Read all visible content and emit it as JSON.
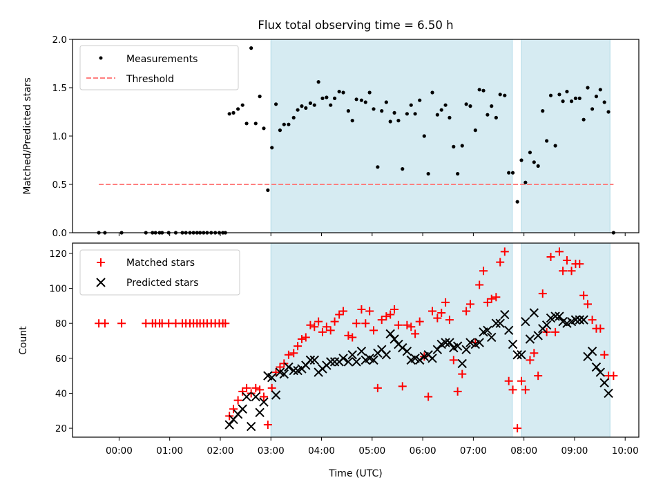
{
  "chart_data": [
    {
      "type": "scatter",
      "title": "Flux total observing time = 6.50 h",
      "xlabel": "",
      "ylabel": "Matched/Predicted stars",
      "ylim": [
        0,
        2.0
      ],
      "xlim_hours": [
        -0.92,
        10.27
      ],
      "yticks": [
        "0.0",
        "0.5",
        "1.0",
        "1.5",
        "2.0"
      ],
      "legend": {
        "placement": "top-left",
        "entries": [
          "Measurements",
          "Threshold"
        ]
      },
      "threshold": {
        "value": 0.5,
        "x_range_hours": [
          -0.4,
          9.77
        ],
        "color": "#ff7f7f"
      },
      "shaded_intervals_hours": [
        [
          3.0,
          7.77
        ],
        [
          7.95,
          9.7
        ]
      ],
      "series": [
        {
          "name": "Measurements",
          "color": "#000000",
          "x_hours": [
            -0.4,
            -0.28,
            0.05,
            0.53,
            0.66,
            0.72,
            0.8,
            0.85,
            0.98,
            1.12,
            1.25,
            1.32,
            1.4,
            1.47,
            1.54,
            1.6,
            1.67,
            1.74,
            1.82,
            1.9,
            1.98,
            2.05,
            2.1,
            2.18,
            2.26,
            2.35,
            2.44,
            2.52,
            2.61,
            2.7,
            2.78,
            2.86,
            2.94,
            3.02,
            3.1,
            3.18,
            3.26,
            3.35,
            3.45,
            3.53,
            3.61,
            3.69,
            3.78,
            3.86,
            3.94,
            4.02,
            4.1,
            4.18,
            4.26,
            4.35,
            4.43,
            4.53,
            4.61,
            4.69,
            4.79,
            4.87,
            4.95,
            5.03,
            5.11,
            5.19,
            5.28,
            5.36,
            5.44,
            5.52,
            5.6,
            5.69,
            5.77,
            5.85,
            5.94,
            6.03,
            6.11,
            6.19,
            6.29,
            6.37,
            6.45,
            6.53,
            6.61,
            6.69,
            6.78,
            6.86,
            6.94,
            7.04,
            7.12,
            7.2,
            7.28,
            7.36,
            7.45,
            7.53,
            7.62,
            7.7,
            7.78,
            7.87,
            7.95,
            8.03,
            8.12,
            8.2,
            8.28,
            8.37,
            8.45,
            8.53,
            8.62,
            8.7,
            8.77,
            8.85,
            8.94,
            9.02,
            9.1,
            9.18,
            9.26,
            9.35,
            9.43,
            9.51,
            9.59,
            9.67,
            9.77
          ],
          "y": [
            0,
            0,
            0,
            0,
            0,
            0,
            0,
            0,
            0,
            0,
            0,
            0,
            0,
            0,
            0,
            0,
            0,
            0,
            0,
            0,
            0,
            0,
            0,
            1.23,
            1.24,
            1.28,
            1.32,
            1.13,
            1.91,
            1.13,
            1.41,
            1.08,
            0.44,
            0.88,
            1.33,
            1.06,
            1.12,
            1.12,
            1.19,
            1.27,
            1.31,
            1.29,
            1.34,
            1.32,
            1.56,
            1.39,
            1.4,
            1.32,
            1.39,
            1.46,
            1.45,
            1.26,
            1.16,
            1.38,
            1.37,
            1.35,
            1.45,
            1.28,
            0.68,
            1.26,
            1.35,
            1.15,
            1.24,
            1.16,
            0.66,
            1.23,
            1.32,
            1.23,
            1.37,
            1.0,
            0.61,
            1.45,
            1.22,
            1.27,
            1.32,
            1.19,
            0.89,
            0.61,
            0.9,
            1.33,
            1.31,
            1.06,
            1.48,
            1.47,
            1.22,
            1.31,
            1.19,
            1.43,
            1.42,
            0.62,
            0.62,
            0.32,
            0.75,
            0.52,
            0.83,
            0.73,
            0.69,
            1.26,
            0.95,
            1.42,
            0.9,
            1.43,
            1.36,
            1.46,
            1.36,
            1.39,
            1.39,
            1.17,
            1.5,
            1.28,
            1.41,
            1.48,
            1.35,
            1.25,
            0.0
          ]
        }
      ]
    },
    {
      "type": "scatter",
      "xlabel": "Time (UTC)",
      "ylabel": "Count",
      "ylim": [
        14.9,
        125.9
      ],
      "xlim_hours": [
        -0.92,
        10.27
      ],
      "xticks": [
        "00:00",
        "01:00",
        "02:00",
        "03:00",
        "04:00",
        "05:00",
        "06:00",
        "07:00",
        "08:00",
        "09:00",
        "10:00"
      ],
      "yticks": [
        "20",
        "40",
        "60",
        "80",
        "100",
        "120"
      ],
      "legend": {
        "placement": "top-left",
        "entries": [
          "Matched stars",
          "Predicted stars"
        ]
      },
      "shaded_intervals_hours": [
        [
          3.0,
          7.77
        ],
        [
          7.95,
          9.7
        ]
      ],
      "series": [
        {
          "name": "Matched stars",
          "marker": "+",
          "color": "#ff0000",
          "x_hours": [
            -0.4,
            -0.28,
            0.05,
            0.53,
            0.66,
            0.72,
            0.8,
            0.85,
            0.98,
            1.12,
            1.25,
            1.32,
            1.4,
            1.47,
            1.54,
            1.6,
            1.67,
            1.74,
            1.82,
            1.9,
            1.98,
            2.05,
            2.1,
            2.18,
            2.26,
            2.35,
            2.44,
            2.52,
            2.61,
            2.7,
            2.78,
            2.86,
            2.94,
            3.02,
            3.1,
            3.18,
            3.26,
            3.35,
            3.45,
            3.53,
            3.61,
            3.69,
            3.78,
            3.86,
            3.94,
            4.02,
            4.1,
            4.18,
            4.26,
            4.35,
            4.43,
            4.53,
            4.61,
            4.69,
            4.79,
            4.87,
            4.95,
            5.03,
            5.11,
            5.19,
            5.28,
            5.36,
            5.44,
            5.52,
            5.6,
            5.69,
            5.77,
            5.85,
            5.94,
            6.03,
            6.11,
            6.19,
            6.29,
            6.37,
            6.45,
            6.53,
            6.61,
            6.69,
            6.78,
            6.86,
            6.94,
            7.04,
            7.12,
            7.2,
            7.28,
            7.36,
            7.45,
            7.53,
            7.62,
            7.7,
            7.78,
            7.87,
            7.95,
            8.03,
            8.12,
            8.2,
            8.28,
            8.37,
            8.45,
            8.53,
            8.62,
            8.7,
            8.77,
            8.85,
            8.94,
            9.02,
            9.1,
            9.18,
            9.26,
            9.35,
            9.43,
            9.51,
            9.59,
            9.67,
            9.77
          ],
          "y": [
            80,
            80,
            80,
            80,
            80,
            80,
            80,
            80,
            80,
            80,
            80,
            80,
            80,
            80,
            80,
            80,
            80,
            80,
            80,
            80,
            80,
            80,
            80,
            27,
            31,
            36,
            41,
            43,
            40,
            43,
            42,
            38,
            22,
            43,
            52,
            55,
            57,
            62,
            63,
            67,
            71,
            72,
            79,
            78,
            81,
            75,
            78,
            76,
            81,
            85,
            87,
            73,
            72,
            80,
            88,
            80,
            87,
            76,
            43,
            82,
            84,
            85,
            88,
            79,
            44,
            79,
            78,
            74,
            81,
            61,
            38,
            87,
            83,
            86,
            92,
            82,
            59,
            41,
            51,
            87,
            91,
            69,
            102,
            110,
            92,
            94,
            95,
            115,
            121,
            47,
            42,
            20,
            47,
            42,
            59,
            63,
            50,
            97,
            75,
            118,
            75,
            121,
            110,
            116,
            110,
            114,
            114,
            96,
            91,
            82,
            77,
            77,
            62,
            50,
            50
          ]
        },
        {
          "name": "Predicted stars",
          "marker": "x",
          "color": "#000000",
          "x_hours": [
            2.18,
            2.26,
            2.35,
            2.44,
            2.52,
            2.61,
            2.7,
            2.78,
            2.86,
            2.94,
            3.02,
            3.1,
            3.18,
            3.26,
            3.35,
            3.45,
            3.53,
            3.61,
            3.69,
            3.78,
            3.86,
            3.94,
            4.02,
            4.1,
            4.18,
            4.26,
            4.35,
            4.43,
            4.53,
            4.61,
            4.69,
            4.79,
            4.87,
            4.95,
            5.03,
            5.11,
            5.19,
            5.28,
            5.36,
            5.44,
            5.52,
            5.6,
            5.69,
            5.77,
            5.85,
            5.94,
            6.03,
            6.11,
            6.19,
            6.29,
            6.37,
            6.45,
            6.53,
            6.61,
            6.69,
            6.78,
            6.86,
            6.94,
            7.04,
            7.12,
            7.2,
            7.28,
            7.36,
            7.45,
            7.53,
            7.62,
            7.7,
            7.78,
            7.87,
            7.95,
            8.03,
            8.12,
            8.2,
            8.28,
            8.37,
            8.45,
            8.53,
            8.62,
            8.7,
            8.77,
            8.85,
            8.94,
            9.02,
            9.1,
            9.18,
            9.26,
            9.35,
            9.43,
            9.51,
            9.59,
            9.67
          ],
          "y": [
            22,
            25,
            28,
            31,
            38,
            21,
            38,
            29,
            35,
            50,
            49,
            39,
            52,
            51,
            55,
            53,
            53,
            54,
            56,
            59,
            59,
            52,
            54,
            56,
            58,
            58,
            58,
            60,
            58,
            62,
            58,
            64,
            59,
            60,
            59,
            63,
            65,
            62,
            74,
            71,
            68,
            66,
            64,
            59,
            60,
            59,
            61,
            62,
            60,
            65,
            68,
            69,
            69,
            66,
            67,
            57,
            65,
            69,
            68,
            69,
            75,
            76,
            72,
            80,
            80,
            85,
            76,
            68,
            62,
            62,
            81,
            71,
            86,
            73,
            77,
            79,
            83,
            84,
            84,
            81,
            80,
            81,
            82,
            82,
            82,
            61,
            64,
            55,
            52,
            46,
            40
          ]
        }
      ]
    }
  ]
}
